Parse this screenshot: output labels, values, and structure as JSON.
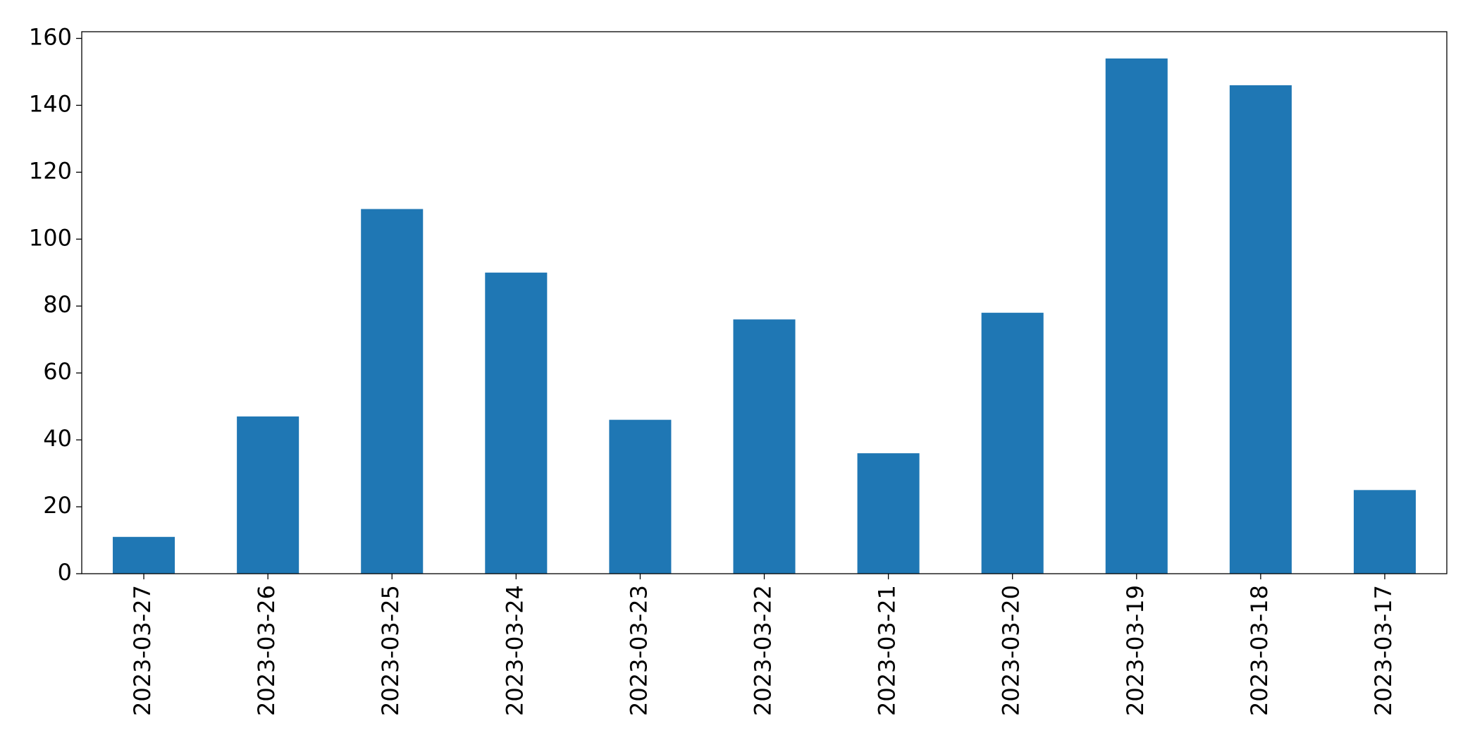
{
  "chart_data": {
    "type": "bar",
    "categories": [
      "2023-03-27",
      "2023-03-26",
      "2023-03-25",
      "2023-03-24",
      "2023-03-23",
      "2023-03-22",
      "2023-03-21",
      "2023-03-20",
      "2023-03-19",
      "2023-03-18",
      "2023-03-17"
    ],
    "values": [
      11,
      47,
      109,
      90,
      46,
      76,
      36,
      78,
      154,
      146,
      25
    ],
    "color": "#1f77b4",
    "ylim": [
      0,
      162
    ],
    "yticks": [
      0,
      20,
      40,
      60,
      80,
      100,
      120,
      140,
      160
    ],
    "grid": false
  }
}
